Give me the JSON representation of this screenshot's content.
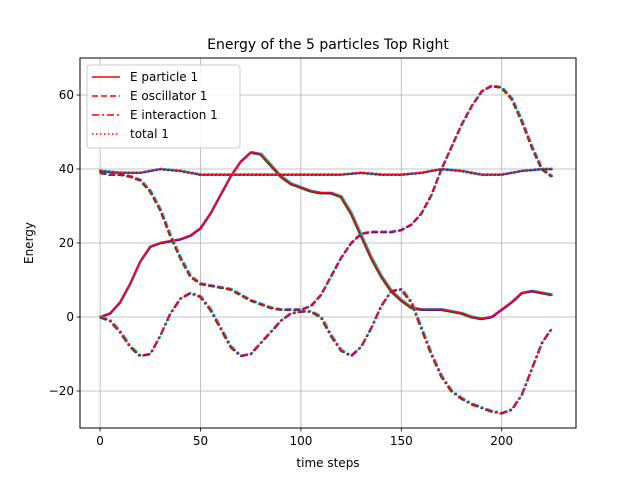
{
  "chart_data": {
    "type": "line",
    "title": "Energy of the 5 particles Top Right",
    "xlabel": "time steps",
    "ylabel": "Energy",
    "xlim": [
      -10,
      237
    ],
    "ylim": [
      -30,
      70
    ],
    "xticks": [
      0,
      50,
      100,
      150,
      200
    ],
    "yticks": [
      -20,
      0,
      20,
      40,
      60
    ],
    "grid": true,
    "legend_placement": "top-left",
    "legend": [
      {
        "label": "E particle 1",
        "style": "solid",
        "color": "#ff0000"
      },
      {
        "label": "E oscillator 1",
        "style": "dashed",
        "color": "#ff0000"
      },
      {
        "label": "E interaction 1",
        "style": "dashdot",
        "color": "#ff0000"
      },
      {
        "label": "total 1",
        "style": "dotted",
        "color": "#ff0000"
      }
    ],
    "particle_colors": [
      "#ff0000",
      "#0000ff",
      "#008000",
      "#00bfbf",
      "#bf00bf"
    ],
    "series": [
      {
        "kind": "particle",
        "style": "solid",
        "x": [
          0,
          5,
          10,
          15,
          20,
          25,
          30,
          35,
          40,
          45,
          50,
          55,
          60,
          65,
          70,
          75,
          80,
          85,
          90,
          95,
          100,
          105,
          110,
          115,
          120,
          125,
          130,
          135,
          140,
          145,
          150,
          155,
          160,
          165,
          170,
          175,
          180,
          185,
          190,
          195,
          200,
          205,
          210,
          215,
          220,
          225
        ],
        "y": [
          0,
          1,
          4,
          9,
          15,
          19,
          20,
          20.5,
          21,
          22,
          24,
          28,
          33,
          38,
          42,
          44.5,
          44,
          41,
          38,
          36,
          35,
          34,
          33.5,
          33.5,
          32.5,
          28,
          22,
          16,
          11,
          7,
          4.5,
          2.5,
          2,
          2,
          2,
          1.5,
          1,
          0,
          -0.5,
          0,
          2,
          4,
          6.5,
          7,
          6.5,
          6
        ]
      },
      {
        "kind": "oscillator",
        "style": "dashed",
        "x": [
          0,
          5,
          10,
          15,
          20,
          25,
          30,
          35,
          40,
          45,
          50,
          55,
          60,
          65,
          70,
          75,
          80,
          85,
          90,
          95,
          100,
          105,
          110,
          115,
          120,
          125,
          130,
          135,
          140,
          145,
          150,
          155,
          160,
          165,
          170,
          175,
          180,
          185,
          190,
          195,
          200,
          205,
          210,
          215,
          220,
          225
        ],
        "y": [
          39,
          38.5,
          38.5,
          38,
          37,
          34,
          29,
          22,
          16,
          11,
          9,
          8.5,
          8,
          7.5,
          6,
          4.5,
          3.5,
          2.5,
          2,
          2,
          2,
          3,
          6,
          11,
          16,
          20,
          22.5,
          23,
          23,
          23,
          23.5,
          25,
          28,
          33,
          40,
          46,
          52,
          57,
          61,
          62.5,
          62,
          59,
          53,
          46,
          40,
          38
        ]
      },
      {
        "kind": "interaction",
        "style": "dashdot",
        "x": [
          0,
          5,
          10,
          15,
          20,
          25,
          30,
          35,
          40,
          45,
          50,
          55,
          60,
          65,
          70,
          75,
          80,
          85,
          90,
          95,
          100,
          105,
          110,
          115,
          120,
          125,
          130,
          135,
          140,
          145,
          150,
          155,
          160,
          165,
          170,
          175,
          180,
          185,
          190,
          195,
          200,
          205,
          210,
          215,
          220,
          225
        ],
        "y": [
          0,
          -1,
          -4,
          -8,
          -10.5,
          -10,
          -5,
          1,
          5,
          6.5,
          5.5,
          2,
          -3,
          -8,
          -10.5,
          -10,
          -7,
          -4,
          -1,
          1,
          1.5,
          1.5,
          0,
          -5,
          -9,
          -10.5,
          -8,
          -3,
          3,
          7,
          7.5,
          4,
          -3,
          -10,
          -16,
          -20,
          -22,
          -23.5,
          -24.5,
          -25.5,
          -26,
          -25,
          -21,
          -14,
          -7,
          -3
        ]
      },
      {
        "kind": "total",
        "style": "dotted",
        "x": [
          0,
          10,
          20,
          30,
          40,
          50,
          60,
          70,
          80,
          90,
          100,
          110,
          120,
          130,
          140,
          150,
          160,
          170,
          180,
          190,
          200,
          210,
          220,
          225
        ],
        "y": [
          39.5,
          39,
          39,
          40,
          39.5,
          38.5,
          38.5,
          38.5,
          38.5,
          38.5,
          38.5,
          38.5,
          38.5,
          39,
          38.5,
          38.5,
          39,
          40,
          39.5,
          38.5,
          38.5,
          39.5,
          40,
          40
        ]
      }
    ]
  }
}
